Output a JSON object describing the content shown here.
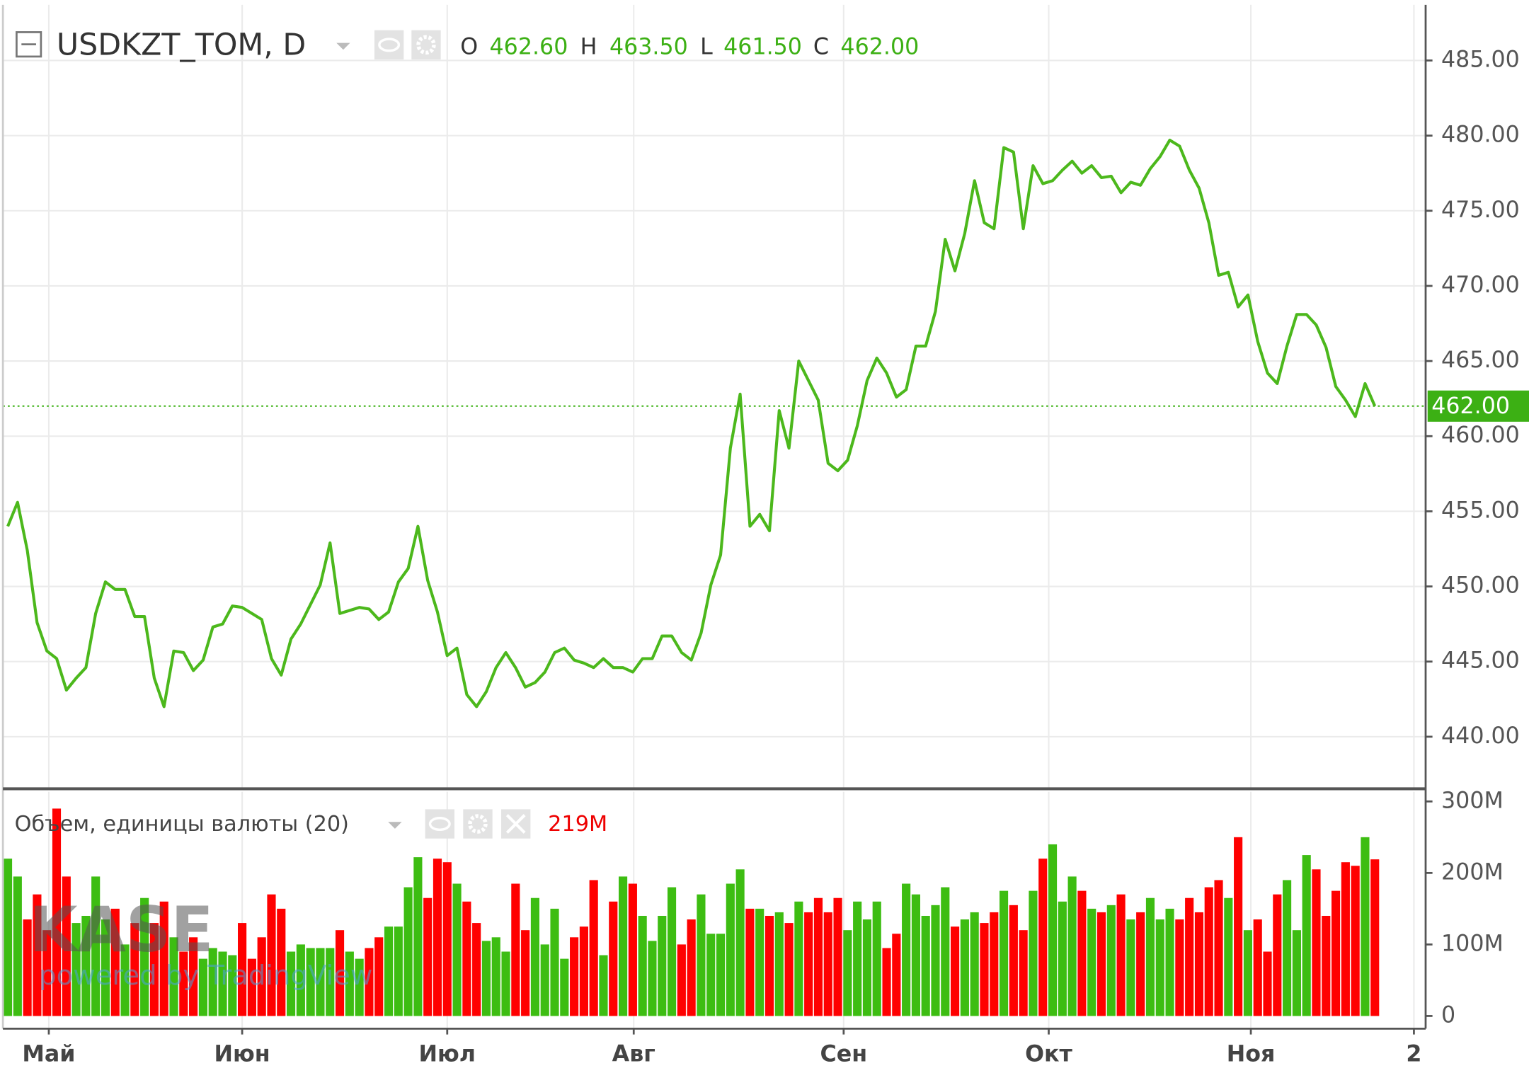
{
  "chart_data": [
    {
      "type": "line",
      "title": "USDKZT_TOM, D",
      "ohlc_labels": [
        "O",
        "H",
        "L",
        "C"
      ],
      "ohlc_values": [
        "462.60",
        "463.50",
        "461.50",
        "462.00"
      ],
      "last_label": "462.00",
      "color": "#4cb81c",
      "tag_color": "#3cb014",
      "values": [
        454.0,
        455.6,
        452.4,
        447.6,
        445.7,
        445.2,
        443.1,
        443.9,
        444.6,
        448.2,
        450.3,
        449.8,
        449.8,
        448.0,
        448.0,
        443.9,
        442.0,
        445.7,
        445.6,
        444.4,
        445.1,
        447.3,
        447.5,
        448.7,
        448.6,
        448.2,
        447.8,
        445.2,
        444.1,
        446.5,
        447.5,
        448.8,
        450.1,
        452.9,
        448.2,
        448.4,
        448.6,
        448.5,
        447.8,
        448.3,
        450.3,
        451.2,
        454.0,
        450.4,
        448.3,
        445.4,
        445.9,
        442.8,
        442.0,
        443.0,
        444.6,
        445.6,
        444.6,
        443.3,
        443.6,
        444.3,
        445.6,
        445.9,
        445.1,
        444.9,
        444.6,
        445.2,
        444.6,
        444.6,
        444.3,
        445.2,
        445.2,
        446.7,
        446.7,
        445.6,
        445.1,
        446.9,
        450.1,
        452.1,
        459.2,
        462.8,
        454.0,
        454.8,
        453.7,
        461.7,
        459.2,
        465.0,
        463.7,
        462.4,
        458.2,
        457.7,
        458.4,
        460.7,
        463.7,
        465.2,
        464.2,
        462.6,
        463.1,
        466.0,
        466.0,
        468.3,
        473.1,
        471.0,
        473.5,
        477.0,
        474.2,
        473.8,
        479.2,
        478.9,
        473.8,
        478.0,
        476.8,
        477.0,
        477.7,
        478.3,
        477.5,
        478.0,
        477.2,
        477.3,
        476.2,
        476.9,
        476.7,
        477.8,
        478.6,
        479.7,
        479.3,
        477.7,
        476.5,
        474.2,
        470.7,
        470.9,
        468.6,
        469.4,
        466.3,
        464.2,
        463.5,
        466.0,
        468.1,
        468.1,
        467.4,
        465.9,
        463.3,
        462.4,
        461.3,
        463.5,
        462.0
      ],
      "xlim": [
        -0.5,
        145.2
      ],
      "xticks": [
        {
          "value": 4.2,
          "label": "Май"
        },
        {
          "value": 24,
          "label": "Июн"
        },
        {
          "value": 45,
          "label": "Июл"
        },
        {
          "value": 64.1,
          "label": "Авг"
        },
        {
          "value": 85.6,
          "label": "Сен"
        },
        {
          "value": 106.6,
          "label": "Окт"
        },
        {
          "value": 127.3,
          "label": "Ноя"
        },
        {
          "value": 144,
          "label": "2"
        }
      ],
      "ylim": [
        436.6,
        488.7
      ],
      "yticks": [
        {
          "value": 440,
          "label": "440.00"
        },
        {
          "value": 445,
          "label": "445.00"
        },
        {
          "value": 450,
          "label": "450.00"
        },
        {
          "value": 455,
          "label": "455.00"
        },
        {
          "value": 460,
          "label": "460.00"
        },
        {
          "value": 465,
          "label": "465.00"
        },
        {
          "value": 470,
          "label": "470.00"
        },
        {
          "value": 475,
          "label": "475.00"
        },
        {
          "value": 480,
          "label": "480.00"
        },
        {
          "value": 485,
          "label": "485.00"
        }
      ],
      "grid": true
    },
    {
      "type": "bar",
      "title": "Объем, единицы валюты (20)",
      "last_label": "219M",
      "up_color": "#3dbd12",
      "down_color": "#ff0000",
      "values": [
        220,
        195,
        135,
        170,
        120,
        290,
        195,
        130,
        140,
        195,
        135,
        150,
        100,
        130,
        165,
        130,
        160,
        110,
        90,
        110,
        80,
        95,
        90,
        85,
        130,
        80,
        110,
        170,
        150,
        90,
        100,
        95,
        95,
        95,
        120,
        90,
        80,
        95,
        110,
        125,
        125,
        180,
        222,
        165,
        220,
        215,
        185,
        160,
        130,
        105,
        110,
        90,
        185,
        120,
        165,
        100,
        150,
        80,
        110,
        125,
        190,
        85,
        160,
        195,
        185,
        140,
        105,
        140,
        180,
        100,
        135,
        170,
        115,
        115,
        185,
        205,
        150,
        150,
        140,
        145,
        130,
        160,
        145,
        165,
        145,
        165,
        120,
        160,
        135,
        160,
        95,
        115,
        185,
        170,
        140,
        155,
        180,
        125,
        135,
        145,
        130,
        145,
        175,
        155,
        120,
        175,
        220,
        240,
        160,
        195,
        175,
        150,
        145,
        155,
        170,
        135,
        145,
        165,
        135,
        150,
        135,
        165,
        145,
        180,
        190,
        165,
        250,
        120,
        135,
        90,
        170,
        190,
        120,
        225,
        205,
        140,
        175,
        215,
        210,
        250,
        219
      ],
      "ylim": [
        -17.7,
        313.6
      ],
      "yticks": [
        0,
        {
          "value": 100,
          "label": "100M"
        },
        {
          "value": 200,
          "label": "200M"
        },
        {
          "value": 300,
          "label": "300M"
        }
      ]
    }
  ],
  "watermark": [
    "KASE",
    "powered by TradingView"
  ]
}
